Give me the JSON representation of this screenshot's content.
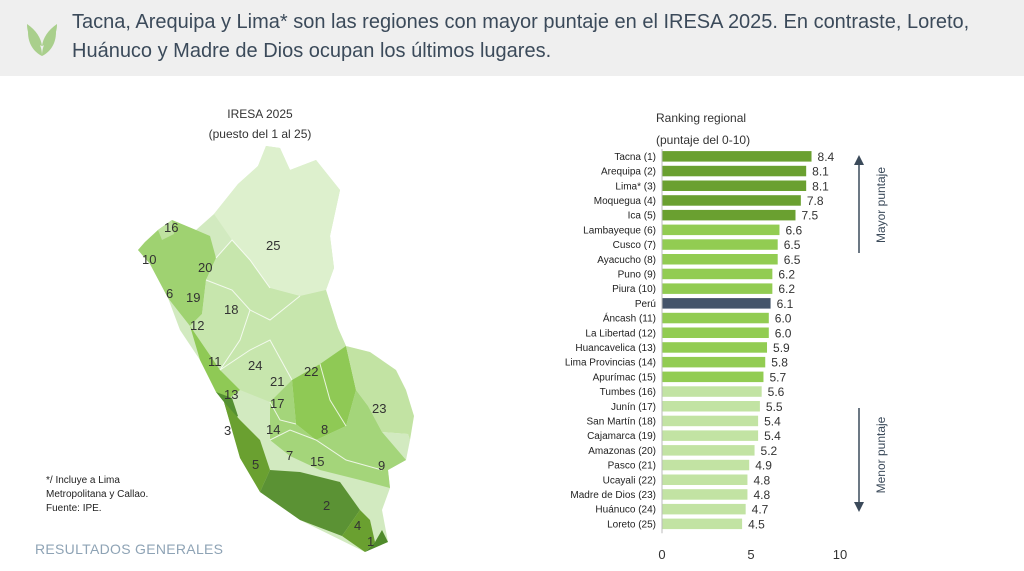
{
  "header": {
    "headline": "Tacna, Arequipa y Lima* son las regiones con mayor puntaje en el IRESA 2025. En contraste, Loreto, Huánuco y Madre de Dios ocupan los últimos lugares.",
    "icon": "leaf-icon"
  },
  "map": {
    "title": "IRESA 2025",
    "subtitle": "(puesto del 1 al 25)",
    "labels": [
      "16",
      "10",
      "20",
      "25",
      "6",
      "19",
      "18",
      "12",
      "11",
      "24",
      "21",
      "22",
      "13",
      "17",
      "23",
      "3",
      "14",
      "8",
      "7",
      "15",
      "9",
      "5",
      "2",
      "4",
      "1"
    ]
  },
  "footnote": {
    "lines": [
      "*/ Incluye a Lima",
      "Metropolitana y Callao.",
      "Fuente: IPE."
    ]
  },
  "section_label": "RESULTADOS GENERALES",
  "chart_data": {
    "type": "bar",
    "orientation": "horizontal",
    "title": "Ranking regional",
    "subtitle": "(puntaje del 0-10)",
    "categories": [
      "Tacna (1)",
      "Arequipa (2)",
      "Lima* (3)",
      "Moquegua (4)",
      "Ica (5)",
      "Lambayeque (6)",
      "Cusco (7)",
      "Ayacucho (8)",
      "Puno (9)",
      "Piura (10)",
      "Perú",
      "Áncash (11)",
      "La Libertad (12)",
      "Huancavelica (13)",
      "Lima Provincias (14)",
      "Apurímac (15)",
      "Tumbes (16)",
      "Junín (17)",
      "San Martín (18)",
      "Cajamarca (19)",
      "Amazonas (20)",
      "Pasco (21)",
      "Ucayali (22)",
      "Madre de Dios (23)",
      "Huánuco (24)",
      "Loreto (25)"
    ],
    "values": [
      8.4,
      8.1,
      8.1,
      7.8,
      7.5,
      6.6,
      6.5,
      6.5,
      6.2,
      6.2,
      6.1,
      6.0,
      6.0,
      5.9,
      5.8,
      5.7,
      5.6,
      5.5,
      5.4,
      5.4,
      5.2,
      4.9,
      4.8,
      4.8,
      4.7,
      4.5
    ],
    "value_labels": [
      "8.4",
      "8.1",
      "8.1",
      "7.8",
      "7.5",
      "6.6",
      "6.5",
      "6.5",
      "6.2",
      "6.2",
      "6.1",
      "6.0",
      "6.0",
      "5.9",
      "5.8",
      "5.7",
      "5.6",
      "5.5",
      "5.4",
      "5.4",
      "5.2",
      "4.9",
      "4.8",
      "4.8",
      "4.7",
      "4.5"
    ],
    "xlim": [
      0,
      10
    ],
    "xticks": [
      "0",
      "5",
      "10"
    ],
    "grid": false,
    "colors": {
      "top": "#6aa030",
      "mid": "#92cc52",
      "low": "#c2e3a3",
      "country": "#44546a"
    },
    "side_labels": {
      "top": "Mayor puntaje",
      "bottom": "Menor puntaje"
    }
  }
}
